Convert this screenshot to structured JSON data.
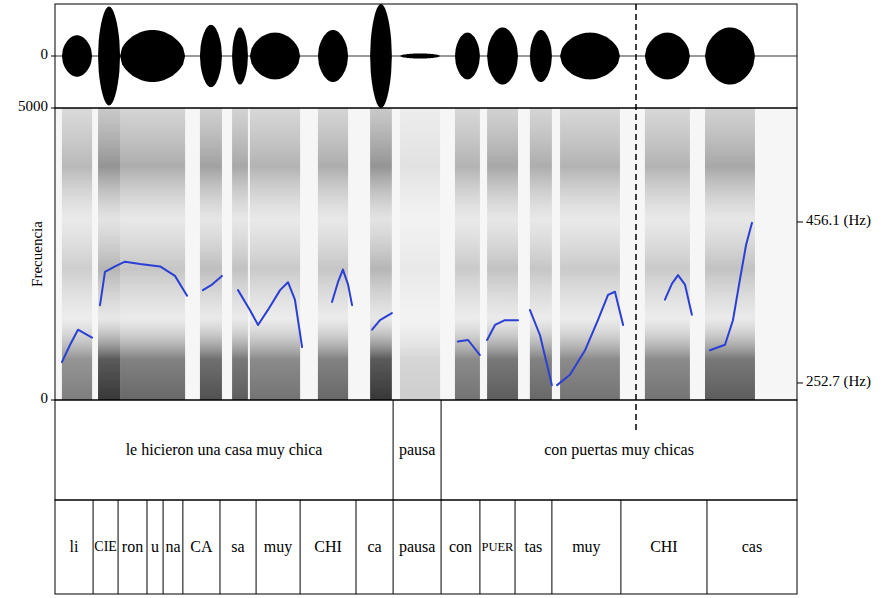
{
  "chart_data": {
    "type": "line",
    "xlim": [
      0,
      3.0
    ],
    "tick_labels": "y",
    "waveform": {
      "ylim": [
        -1,
        1
      ],
      "yticks": [
        0
      ],
      "bursts": [
        {
          "start": 0.028,
          "end": 0.15,
          "amplitude": 0.4
        },
        {
          "start": 0.174,
          "end": 0.263,
          "amplitude": 0.95
        },
        {
          "start": 0.263,
          "end": 0.526,
          "amplitude": 0.5
        },
        {
          "start": 0.586,
          "end": 0.675,
          "amplitude": 0.6
        },
        {
          "start": 0.716,
          "end": 0.78,
          "amplitude": 0.55
        },
        {
          "start": 0.788,
          "end": 0.991,
          "amplitude": 0.45
        },
        {
          "start": 1.063,
          "end": 1.185,
          "amplitude": 0.5
        },
        {
          "start": 1.274,
          "end": 1.362,
          "amplitude": 1.0
        },
        {
          "start": 1.395,
          "end": 1.557,
          "amplitude": 0.05
        },
        {
          "start": 1.617,
          "end": 1.718,
          "amplitude": 0.45
        },
        {
          "start": 1.747,
          "end": 1.872,
          "amplitude": 0.55
        },
        {
          "start": 1.92,
          "end": 2.009,
          "amplitude": 0.5
        },
        {
          "start": 2.042,
          "end": 2.284,
          "amplitude": 0.45
        },
        {
          "start": 2.385,
          "end": 2.567,
          "amplitude": 0.45
        },
        {
          "start": 2.628,
          "end": 2.83,
          "amplitude": 0.55
        }
      ]
    },
    "y_label": "Frecuencia",
    "ylim": [
      0,
      5000
    ],
    "yticks": [
      0,
      5000
    ],
    "y2lim": [
      231.2,
      600.1
    ],
    "y2ticks": [
      {
        "value": 252.7,
        "label": "252.7 (Hz)"
      },
      {
        "value": 456.1,
        "label": "456.1 (Hz)"
      }
    ],
    "series": [
      {
        "color": "#2b3fd4",
        "axis": "y2",
        "x": [
          0.028,
          0.061,
          0.093,
          0.121,
          0.15,
          0.166,
          0.182,
          0.202,
          0.243,
          0.283,
          0.344,
          0.425,
          0.485,
          0.534,
          0.566,
          0.598,
          0.635,
          0.675,
          0.708,
          0.74,
          0.788,
          0.821,
          0.861,
          0.91,
          0.942,
          0.97,
          0.999,
          1.06,
          1.12,
          1.144,
          1.164,
          1.185,
          1.201,
          1.24,
          1.282,
          1.314,
          1.362,
          1.5,
          1.629,
          1.67,
          1.718,
          1.73,
          1.747,
          1.779,
          1.819,
          1.872,
          1.9,
          1.92,
          1.961,
          2.009,
          2.02,
          2.03,
          2.082,
          2.143,
          2.195,
          2.236,
          2.264,
          2.297,
          2.38,
          2.466,
          2.494,
          2.519,
          2.547,
          2.575,
          2.61,
          2.648,
          2.709,
          2.741,
          2.769,
          2.794,
          2.818
        ],
        "values": [
          279,
          301,
          320,
          315,
          310,
          null,
          351,
          393,
          400,
          406,
          403,
          400,
          388,
          363,
          null,
          370,
          377,
          388,
          null,
          370,
          345,
          326,
          345,
          370,
          380,
          358,
          298,
          null,
          355,
          380,
          396,
          377,
          351,
          null,
          320,
          332,
          341,
          null,
          305,
          307,
          288,
          null,
          307,
          326,
          332,
          332,
          null,
          345,
          313,
          250,
          null,
          250,
          263,
          294,
          332,
          364,
          368,
          326,
          null,
          358,
          378,
          389,
          377,
          339,
          null,
          294,
          301,
          332,
          383,
          427,
          455
        ]
      }
    ],
    "reference_line": {
      "x": 2.349,
      "line_style": "dashed"
    },
    "tiers": [
      {
        "intervals": [
          {
            "start": 0,
            "end": 1.367,
            "label": "le hicieron una casa muy chica"
          },
          {
            "start": 1.367,
            "end": 1.561,
            "label": "pausa"
          },
          {
            "start": 1.561,
            "end": 3.0,
            "label": "con puertas muy chicas"
          }
        ]
      },
      {
        "intervals": [
          {
            "start": 0,
            "end": 0.154,
            "label": "li"
          },
          {
            "start": 0.154,
            "end": 0.255,
            "label": "CIE"
          },
          {
            "start": 0.255,
            "end": 0.372,
            "label": "ron"
          },
          {
            "start": 0.372,
            "end": 0.437,
            "label": "u"
          },
          {
            "start": 0.437,
            "end": 0.517,
            "label": "na"
          },
          {
            "start": 0.517,
            "end": 0.667,
            "label": "CA"
          },
          {
            "start": 0.667,
            "end": 0.813,
            "label": "sa"
          },
          {
            "start": 0.813,
            "end": 0.991,
            "label": "muy"
          },
          {
            "start": 0.991,
            "end": 1.217,
            "label": "CHI"
          },
          {
            "start": 1.217,
            "end": 1.367,
            "label": "ca"
          },
          {
            "start": 1.367,
            "end": 1.561,
            "label": "pausa"
          },
          {
            "start": 1.561,
            "end": 1.718,
            "label": "con"
          },
          {
            "start": 1.718,
            "end": 1.86,
            "label": "PUER"
          },
          {
            "start": 1.86,
            "end": 2.009,
            "label": "tas"
          },
          {
            "start": 2.009,
            "end": 2.288,
            "label": "muy"
          },
          {
            "start": 2.288,
            "end": 2.636,
            "label": "CHI"
          },
          {
            "start": 2.636,
            "end": 3.0,
            "label": "cas"
          }
        ]
      }
    ]
  }
}
